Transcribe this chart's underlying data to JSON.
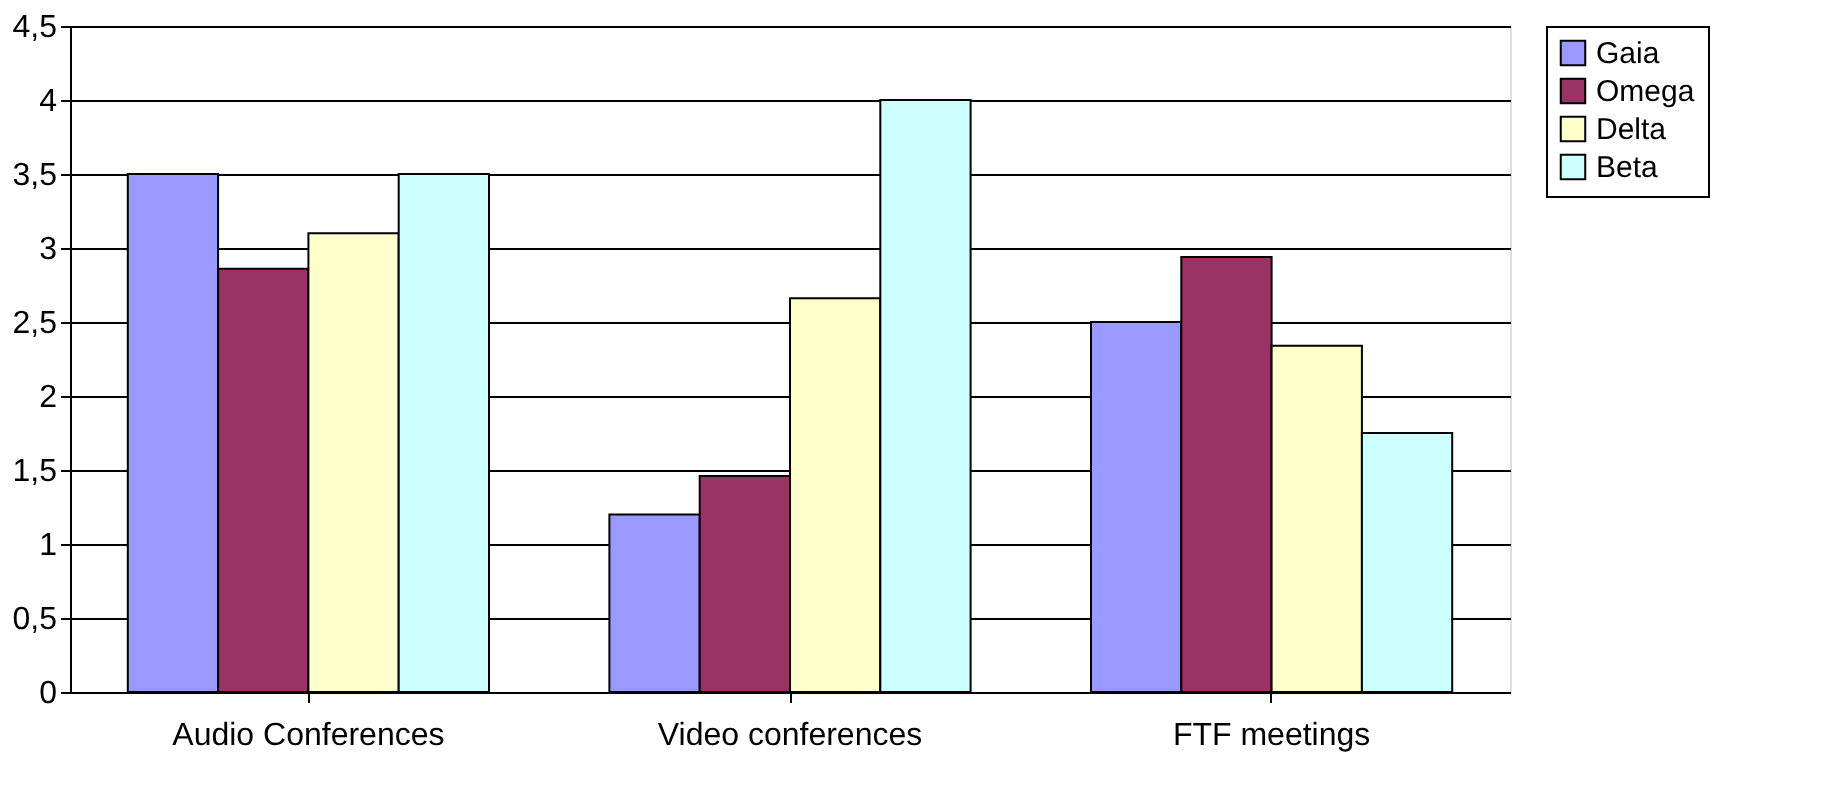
{
  "chart_data": {
    "type": "bar",
    "categories": [
      "Audio Conferences",
      "Video conferences",
      "FTF meetings"
    ],
    "series": [
      {
        "name": "Gaia",
        "color": "#9999ff",
        "values": [
          3.5,
          1.2,
          2.5
        ]
      },
      {
        "name": "Omega",
        "color": "#993366",
        "values": [
          2.86,
          1.46,
          2.94
        ]
      },
      {
        "name": "Delta",
        "color": "#ffffcc",
        "values": [
          3.1,
          2.66,
          2.34
        ]
      },
      {
        "name": "Beta",
        "color": "#ccffff",
        "values": [
          3.5,
          4.0,
          1.75
        ]
      }
    ],
    "ylim": [
      0,
      4.5
    ],
    "yticks": [
      0,
      {
        "value": 0.5,
        "label": "0,5"
      },
      1,
      {
        "value": 1.5,
        "label": "1,5"
      },
      2,
      {
        "value": 2.5,
        "label": "2,5"
      },
      3,
      {
        "value": 3.5,
        "label": "3,5"
      },
      4,
      {
        "value": 4.5,
        "label": "4,5"
      }
    ],
    "grid": "y",
    "legend": "right"
  }
}
